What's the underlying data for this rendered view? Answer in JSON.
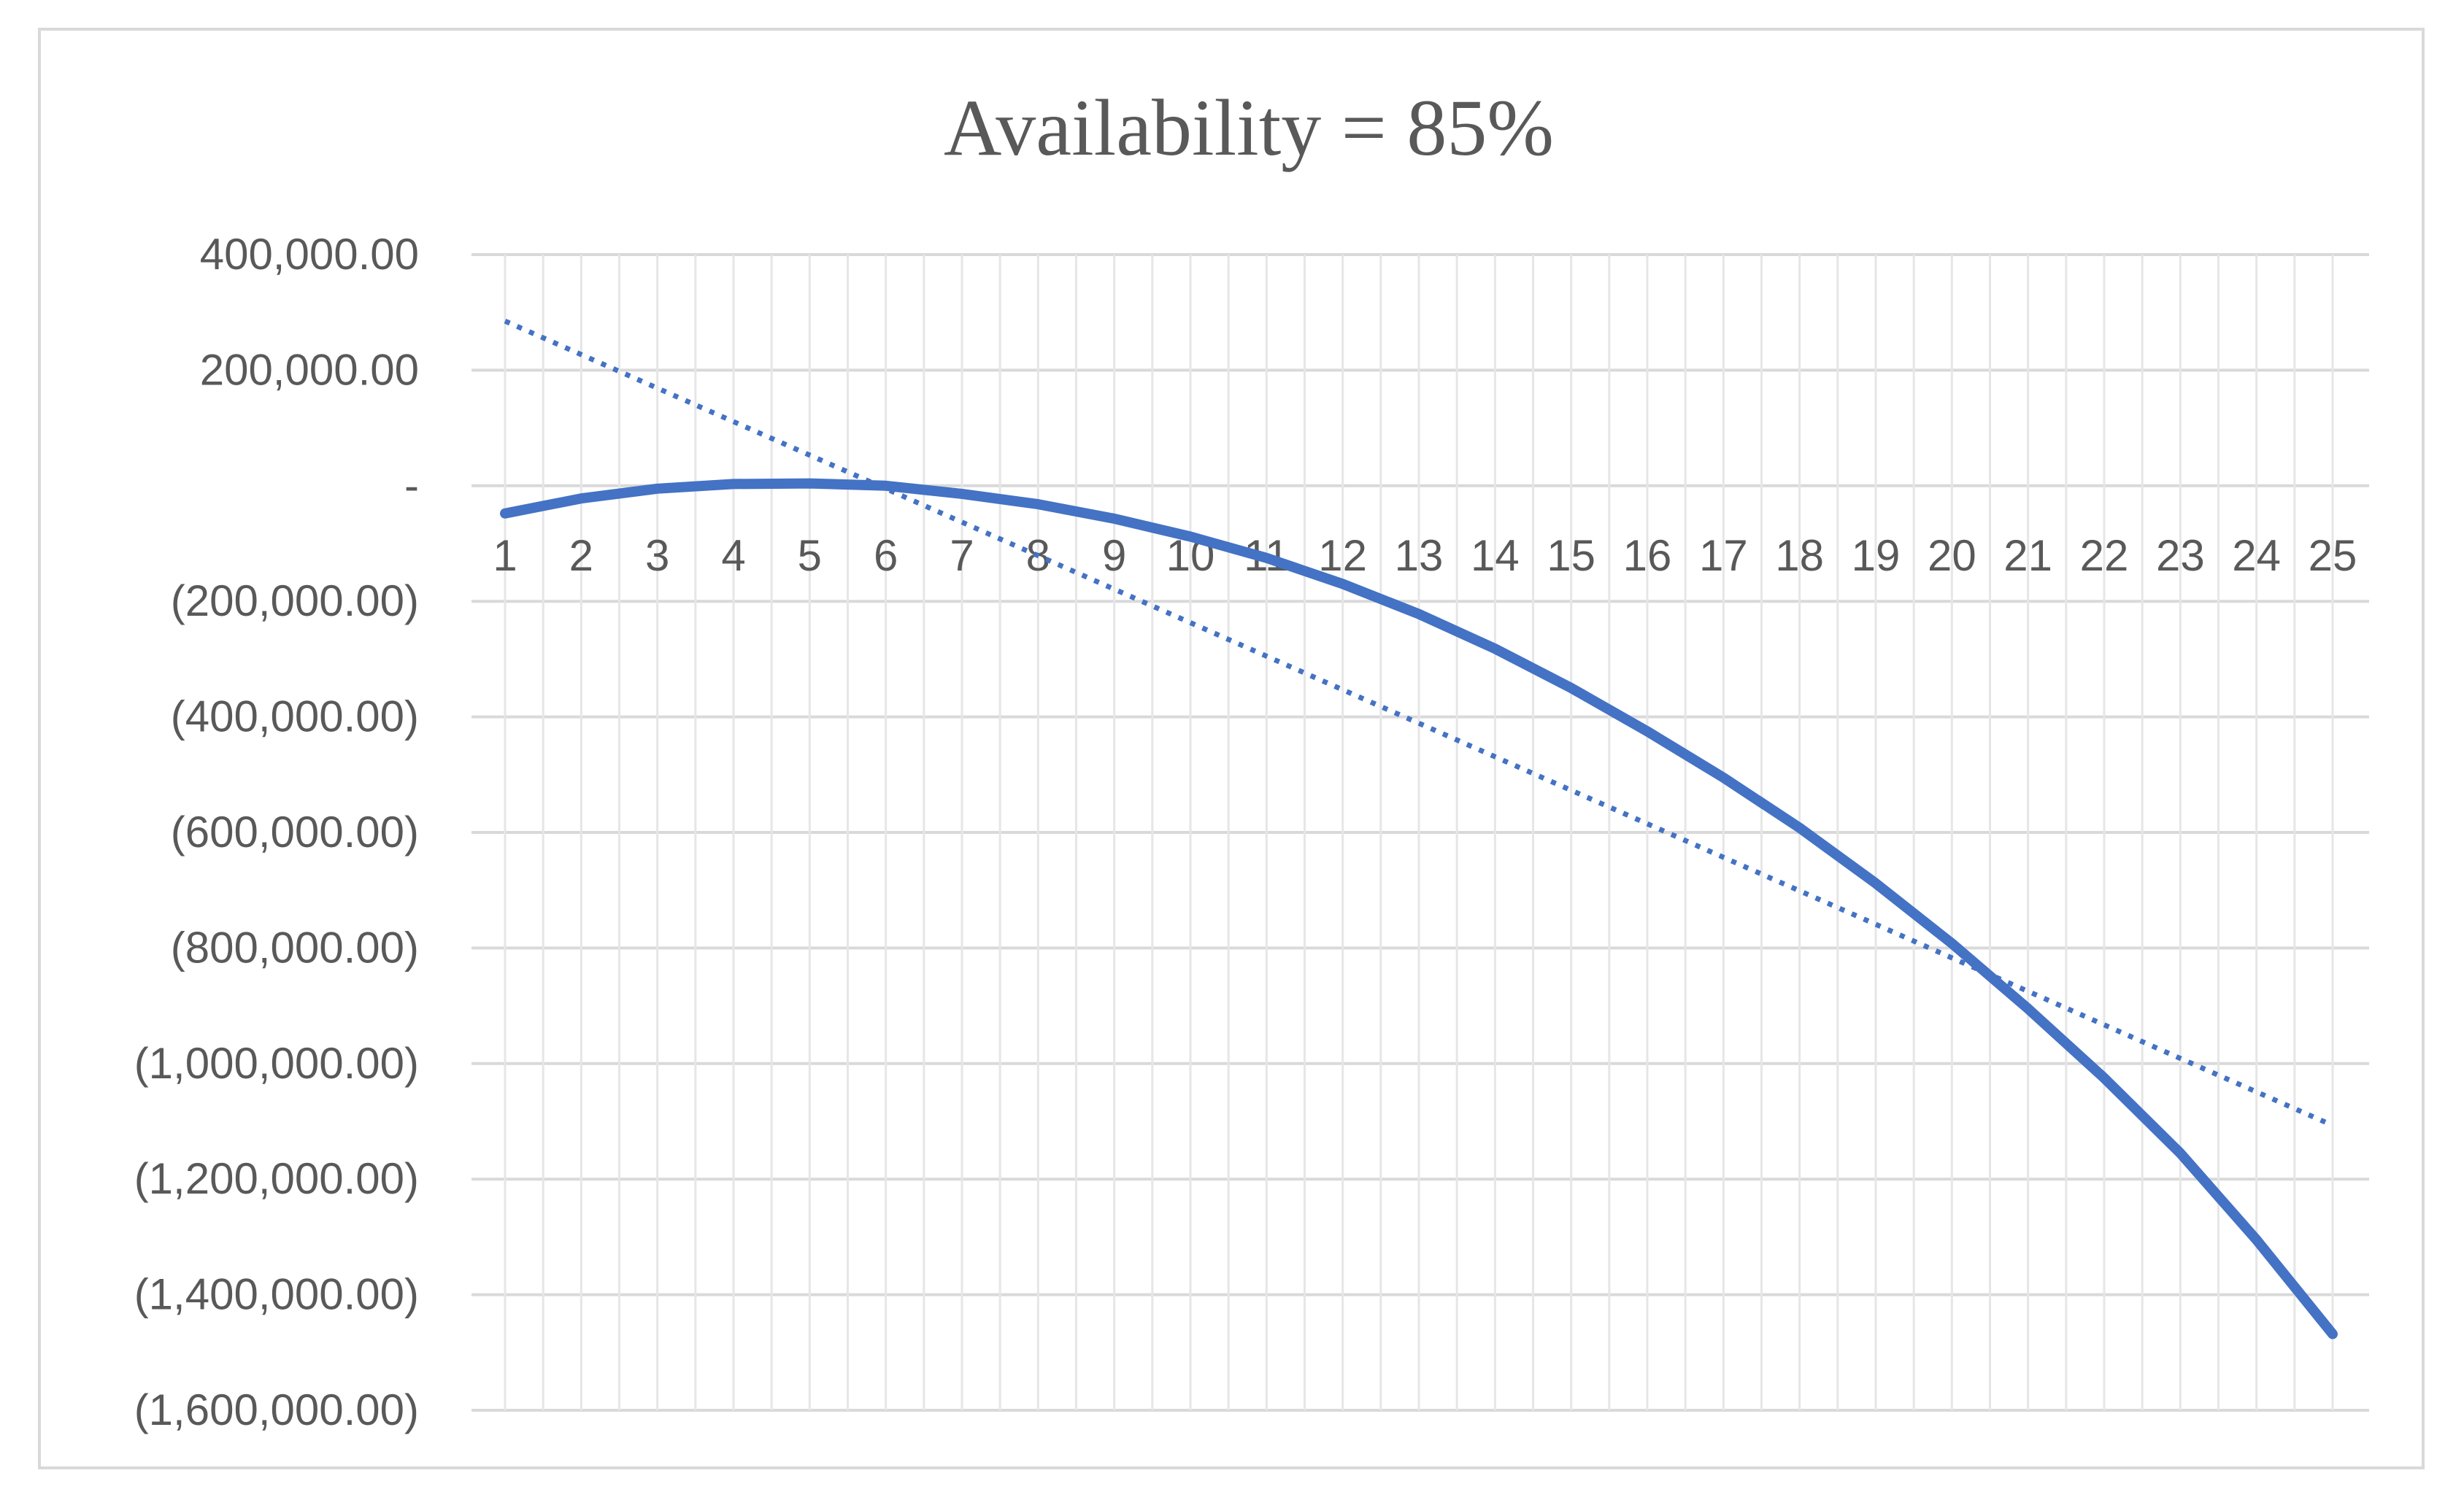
{
  "chart_data": {
    "type": "line",
    "title": "Availability = 85%",
    "xlabel": "",
    "ylabel": "",
    "x": [
      1,
      2,
      3,
      4,
      5,
      6,
      7,
      8,
      9,
      10,
      11,
      12,
      13,
      14,
      15,
      16,
      17,
      18,
      19,
      20,
      21,
      22,
      23,
      24,
      25
    ],
    "x_tick_labels": [
      "1",
      "2",
      "3",
      "4",
      "5",
      "6",
      "7",
      "8",
      "9",
      "10",
      "11",
      "12",
      "13",
      "14",
      "15",
      "16",
      "17",
      "18",
      "19",
      "20",
      "21",
      "22",
      "23",
      "24",
      "25"
    ],
    "ylim": [
      -1600000,
      400000
    ],
    "y_ticks": [
      400000,
      200000,
      0,
      -200000,
      -400000,
      -600000,
      -800000,
      -1000000,
      -1200000,
      -1400000,
      -1600000
    ],
    "y_tick_labels": [
      "400,000.00",
      "200,000.00",
      "-",
      "(200,000.00)",
      "(400,000.00)",
      "(600,000.00)",
      "(800,000.00)",
      "(1,000,000.00)",
      "(1,200,000.00)",
      "(1,400,000.00)",
      "(1,600,000.00)"
    ],
    "grid": true,
    "legend": "none",
    "series": [
      {
        "style": "solid",
        "color": "#4472c4",
        "values": [
          -48000,
          -22000,
          -5000,
          3000,
          4000,
          0,
          -14000,
          -32000,
          -57000,
          -88000,
          -125000,
          -170000,
          -222000,
          -282000,
          -350000,
          -425000,
          -505000,
          -592000,
          -688000,
          -792000,
          -905000,
          -1025000,
          -1155000,
          -1305000,
          -1468000
        ]
      },
      {
        "style": "dotted",
        "trendline": "linear",
        "color": "#4472c4",
        "values": [
          285000,
          227000,
          169000,
          111000,
          53000,
          -5000,
          -63000,
          -121000,
          -179000,
          -237000,
          -295000,
          -353000,
          -411000,
          -469000,
          -527000,
          -585000,
          -643000,
          -701000,
          -759000,
          -817000,
          -875000,
          -933000,
          -991000,
          -1049000,
          -1107000
        ]
      }
    ]
  }
}
